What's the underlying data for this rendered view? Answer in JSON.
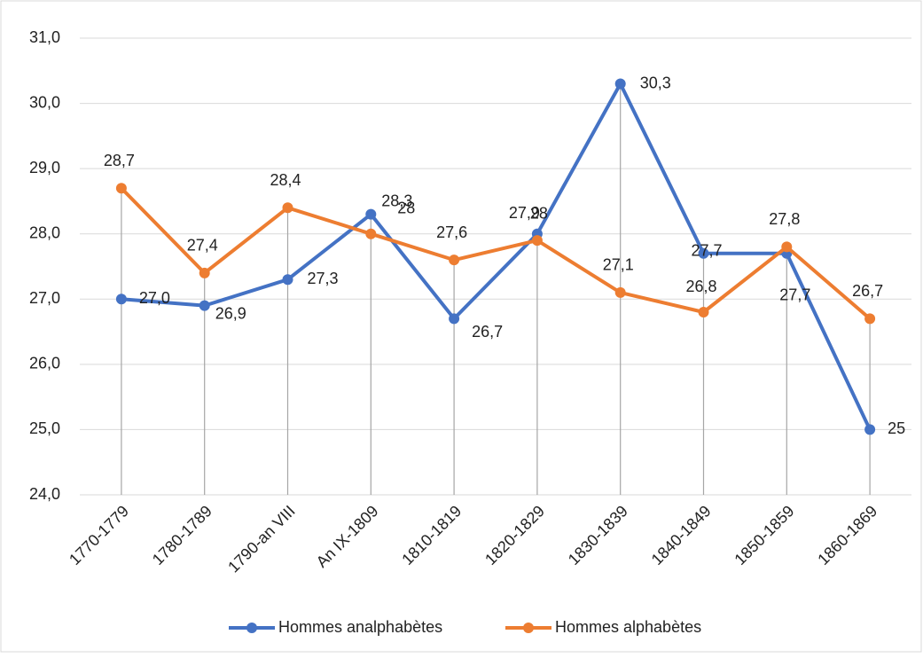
{
  "chart_data": {
    "type": "line",
    "categories": [
      "1770-1779",
      "1780-1789",
      "1790-an VIII",
      "An IX-1809",
      "1810-1819",
      "1820-1829",
      "1830-1839",
      "1840-1849",
      "1850-1859",
      "1860-1869"
    ],
    "series": [
      {
        "name": "Hommes analphabètes",
        "color": "#4472c4",
        "values": [
          27.0,
          26.9,
          27.3,
          28.3,
          26.7,
          28.0,
          30.3,
          27.7,
          27.7,
          25.0
        ],
        "value_labels": [
          "27,0",
          "26,9",
          "27,3",
          "28,3",
          "26,7",
          "28",
          "30,3",
          "27,7",
          "27,7",
          "25"
        ]
      },
      {
        "name": "Hommes alphabètes",
        "color": "#ed7d31",
        "values": [
          28.7,
          27.4,
          28.4,
          28.0,
          27.6,
          27.9,
          27.1,
          26.8,
          27.8,
          26.7
        ],
        "value_labels": [
          "28,7",
          "27,4",
          "28,4",
          "28",
          "27,6",
          "27,9",
          "27,1",
          "26,8",
          "27,8",
          "26,7"
        ]
      }
    ],
    "ylim": [
      24,
      31
    ],
    "yticks": [
      {
        "value": 24,
        "label": "24,0"
      },
      {
        "value": 25,
        "label": "25,0"
      },
      {
        "value": 26,
        "label": "26,0"
      },
      {
        "value": 27,
        "label": "27,0"
      },
      {
        "value": 28,
        "label": "28,0"
      },
      {
        "value": 29,
        "label": "29,0"
      },
      {
        "value": 30,
        "label": "30,0"
      },
      {
        "value": 31,
        "label": "31,0"
      }
    ],
    "grid": true,
    "legend": "bottom"
  }
}
